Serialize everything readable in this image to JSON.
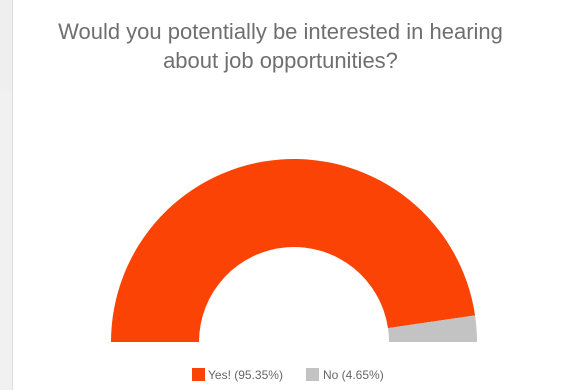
{
  "chart_data": {
    "type": "pie",
    "variant": "half-donut",
    "title_lines": [
      "Would you potentially be interested in hearing",
      "about job opportunities?"
    ],
    "categories": [
      "Yes!",
      "No"
    ],
    "values": [
      95.35,
      4.65
    ],
    "legend": [
      {
        "label": "Yes! (95.35%)",
        "color": "#fa4305"
      },
      {
        "label": "No (4.65%)",
        "color": "#c3c3c3"
      }
    ],
    "colors": [
      "#fa4305",
      "#c3c3c3"
    ],
    "legend_position": "bottom"
  }
}
